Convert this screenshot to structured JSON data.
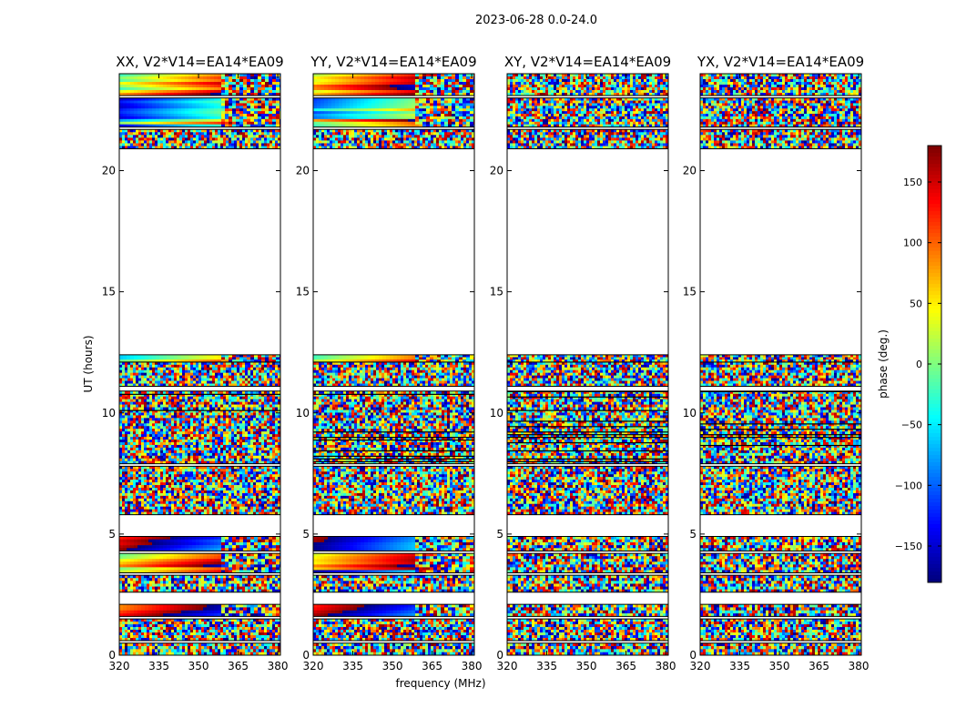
{
  "figure_title": "2023-06-28 0.0-24.0",
  "chart_data": {
    "type": "heatmap",
    "panels": [
      {
        "title": "XX, V2*V14=EA14*EA09",
        "pattern": "parallel"
      },
      {
        "title": "YY, V2*V14=EA14*EA09",
        "pattern": "parallel"
      },
      {
        "title": "XY, V2*V14=EA14*EA09",
        "pattern": "cross"
      },
      {
        "title": "YX, V2*V14=EA14*EA09",
        "pattern": "cross"
      }
    ],
    "xlabel": "frequency (MHz)",
    "ylabel": "UT (hours)",
    "xlim": [
      320,
      381
    ],
    "ylim": [
      0,
      24
    ],
    "xticks": [
      320,
      335,
      350,
      365,
      380
    ],
    "xtick_labels": [
      "320",
      "335",
      "350",
      "365",
      "380"
    ],
    "yticks": [
      0,
      5,
      10,
      15,
      20
    ],
    "ytick_labels": [
      "0",
      "5",
      "10",
      "15",
      "20"
    ],
    "colorbar": {
      "label": "phase (deg.)",
      "range": [
        -180,
        180
      ],
      "ticks": [
        150,
        100,
        50,
        0,
        -50,
        -100,
        -150
      ],
      "tick_labels": [
        "150",
        "100",
        "50",
        "0",
        "−50",
        "−100",
        "−150"
      ],
      "colormap": "jet",
      "colors": [
        "#00007f",
        "#0000ff",
        "#007fff",
        "#00ffff",
        "#7fff7f",
        "#ffff00",
        "#ff7f00",
        "#ff0000",
        "#7f0000"
      ]
    },
    "data_blocks_hours": [
      {
        "start": 0.0,
        "end": 0.5,
        "kind": "noise"
      },
      {
        "start": 0.6,
        "end": 1.5,
        "kind": "noise"
      },
      {
        "start": 1.6,
        "end": 2.1,
        "kind": "smooth-gradient"
      },
      {
        "start": 2.6,
        "end": 3.3,
        "kind": "noise"
      },
      {
        "start": 3.4,
        "end": 4.2,
        "kind": "smooth-gradient"
      },
      {
        "start": 4.3,
        "end": 4.9,
        "kind": "smooth-gradient"
      },
      {
        "start": 5.8,
        "end": 7.8,
        "kind": "noise"
      },
      {
        "start": 7.9,
        "end": 10.9,
        "kind": "noise-dense"
      },
      {
        "start": 11.1,
        "end": 12.1,
        "kind": "noise"
      },
      {
        "start": 12.1,
        "end": 12.4,
        "kind": "smooth-gradient"
      },
      {
        "start": 20.9,
        "end": 21.7,
        "kind": "noise"
      },
      {
        "start": 21.8,
        "end": 23.0,
        "kind": "smooth-gradient"
      },
      {
        "start": 23.1,
        "end": 24.0,
        "kind": "smooth-gradient"
      }
    ]
  }
}
